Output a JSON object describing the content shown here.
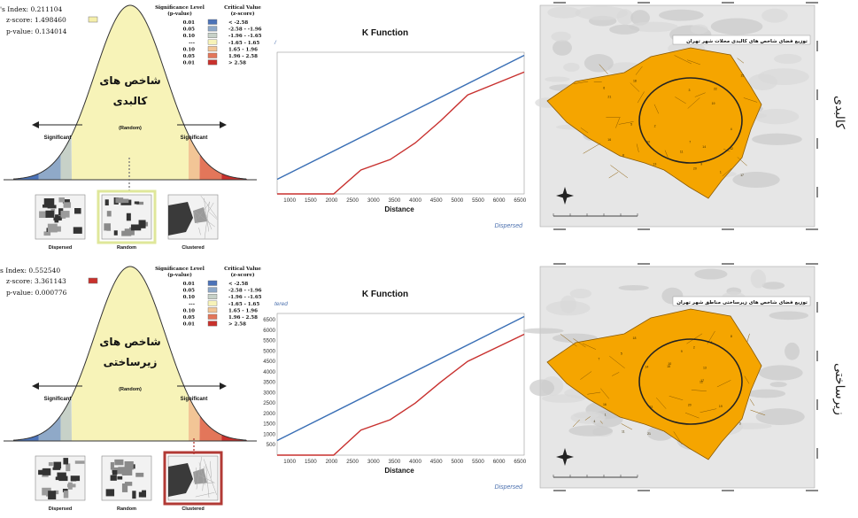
{
  "rows": [
    {
      "side_label": "کالبدی",
      "stats": {
        "index_text": "'s Index: 0.211104",
        "z_text": "z-score: 1.498460",
        "p_text": "p-value: 0.134014",
        "marker_color": "#f5efaa"
      },
      "curve_title_line1": "شاخص های",
      "curve_title_line2": "کالبدی",
      "random_label": "(Random)",
      "left_significant": "Significant",
      "right_significant": "Significant",
      "sig_header1": "Significance Level",
      "sig_header2": "(p-value)",
      "crit_header1": "Critical Value",
      "crit_header2": "(z-score)",
      "legend": [
        {
          "p": "0.01",
          "z": "< -2.58",
          "color": "#4c73b8"
        },
        {
          "p": "0.05",
          "z": "-2.58 - -1.96",
          "color": "#8fa9c8"
        },
        {
          "p": "0.10",
          "z": "-1.96 - -1.65",
          "color": "#c7d1c8"
        },
        {
          "p": "---",
          "z": "-1.65 - 1.65",
          "color": "#f7f3b8"
        },
        {
          "p": "0.10",
          "z": "1.65 - 1.96",
          "color": "#f2c596"
        },
        {
          "p": "0.05",
          "z": "1.96 - 2.58",
          "color": "#e3765a"
        },
        {
          "p": "0.01",
          "z": "> 2.58",
          "color": "#c9312c"
        }
      ],
      "pattern_labels": [
        "Dispersed",
        "Random",
        "Clustered"
      ],
      "highlight": "random",
      "highlight_color": "#dfe79a",
      "k_title": "K Function",
      "k_xlabel": "Distance",
      "k_corner": "Dispersed",
      "k_top_partial": "/",
      "k_yticks": [],
      "map_title": "توزیع فضای شاخص های کالبدی محلات شهر تهران"
    },
    {
      "side_label": "زیرساختی",
      "stats": {
        "index_text": "s Index: 0.552540",
        "z_text": "z-score: 3.361143",
        "p_text": "p-value: 0.000776",
        "marker_color": "#c9312c"
      },
      "curve_title_line1": "شاخص های",
      "curve_title_line2": "زیرساختی",
      "random_label": "(Random)",
      "left_significant": "Significant",
      "right_significant": "Significant",
      "sig_header1": "Significance Level",
      "sig_header2": "(p-value)",
      "crit_header1": "Critical Value",
      "crit_header2": "(z-score)",
      "legend": [
        {
          "p": "0.01",
          "z": "< -2.58",
          "color": "#4c73b8"
        },
        {
          "p": "0.05",
          "z": "-2.58 - -1.96",
          "color": "#8fa9c8"
        },
        {
          "p": "0.10",
          "z": "-1.96 - -1.65",
          "color": "#c7d1c8"
        },
        {
          "p": "---",
          "z": "-1.65 - 1.65",
          "color": "#f7f3b8"
        },
        {
          "p": "0.10",
          "z": "1.65 - 1.96",
          "color": "#f2c596"
        },
        {
          "p": "0.05",
          "z": "1.96 - 2.58",
          "color": "#e3765a"
        },
        {
          "p": "0.01",
          "z": "> 2.58",
          "color": "#c9312c"
        }
      ],
      "pattern_labels": [
        "Dispersed",
        "Random",
        "Clustered"
      ],
      "highlight": "clustered",
      "highlight_color": "#b23a35",
      "k_title": "K Function",
      "k_xlabel": "Distance",
      "k_corner": "Dispersed",
      "k_top_partial": "tered",
      "k_yticks": [
        500,
        1000,
        1500,
        2000,
        2500,
        3000,
        3500,
        4000,
        4500,
        5000,
        5500,
        6000,
        6500
      ],
      "map_title": "توزیع فضای شاخص های زیرساختی مناطق شهر تهران"
    }
  ],
  "chart_data": [
    {
      "type": "line",
      "title": "K Function",
      "xlabel": "Distance",
      "ylabel": "",
      "x_ticks": [
        1000,
        1500,
        2000,
        2500,
        3000,
        3500,
        4000,
        4500,
        5000,
        5500,
        6000,
        6500
      ],
      "xlim": [
        700,
        6600
      ],
      "ylim": [
        0,
        6800
      ],
      "series": [
        {
          "name": "",
          "color": "#3a6fb5",
          "x": [
            700,
            6600
          ],
          "y": [
            700,
            6650
          ]
        },
        {
          "name": "",
          "color": "#c8312f",
          "x": [
            700,
            2050,
            2700,
            3400,
            4000,
            4600,
            5250,
            6600
          ],
          "y": [
            0,
            0,
            1150,
            1650,
            2450,
            3500,
            4750,
            5850
          ]
        }
      ]
    },
    {
      "type": "line",
      "title": "K Function",
      "xlabel": "Distance",
      "ylabel": "",
      "x_ticks": [
        1000,
        1500,
        2000,
        2500,
        3000,
        3500,
        4000,
        4500,
        5000,
        5500,
        6000,
        6500
      ],
      "y_ticks": [
        500,
        1000,
        1500,
        2000,
        2500,
        3000,
        3500,
        4000,
        4500,
        5000,
        5500,
        6000,
        6500
      ],
      "xlim": [
        700,
        6600
      ],
      "ylim": [
        0,
        6800
      ],
      "series": [
        {
          "name": "",
          "color": "#3a6fb5",
          "x": [
            700,
            6600
          ],
          "y": [
            700,
            6650
          ]
        },
        {
          "name": "",
          "color": "#c8312f",
          "x": [
            700,
            2050,
            2700,
            3400,
            4000,
            4600,
            5250,
            6600
          ],
          "y": [
            0,
            0,
            1200,
            1700,
            2500,
            3500,
            4500,
            5800
          ]
        }
      ]
    }
  ]
}
